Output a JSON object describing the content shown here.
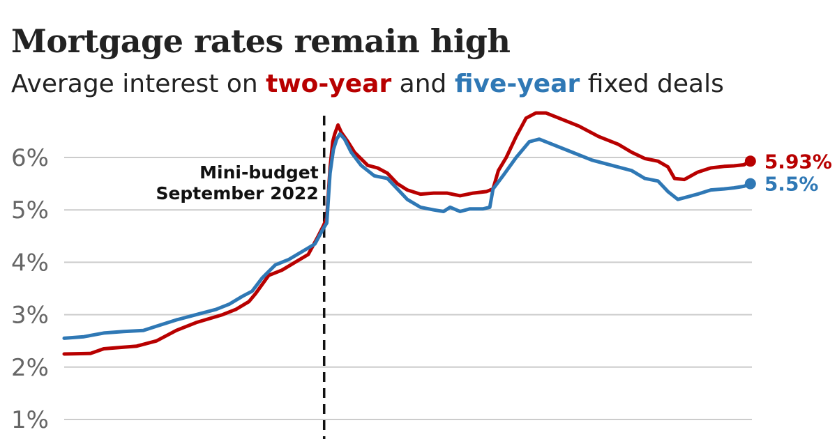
{
  "title": "Mortgage rates remain high",
  "subtitle": {
    "prefix": "Average interest on ",
    "two_year": "two-year",
    "mid": " and ",
    "five_year": "five-year",
    "suffix": " fixed deals"
  },
  "colors": {
    "two_year": "#b80000",
    "five_year": "#2f78b5",
    "grid": "#cccccc",
    "annotation": "#111111"
  },
  "chart_data": {
    "type": "line",
    "ylim": [
      0.6,
      6.8
    ],
    "yticks": [
      {
        "value": 1,
        "label": "1%"
      },
      {
        "value": 2,
        "label": "2%"
      },
      {
        "value": 3,
        "label": "3%"
      },
      {
        "value": 4,
        "label": "4%"
      },
      {
        "value": 5,
        "label": "5%"
      },
      {
        "value": 6,
        "label": "6%"
      }
    ],
    "grid": true,
    "annotation": {
      "x": 0.394,
      "lines": [
        "Mini-budget",
        "September 2022"
      ]
    },
    "series": [
      {
        "name": "two-year",
        "color_key": "two_year",
        "end_label": "5.93%",
        "points": [
          [
            0.0,
            2.25
          ],
          [
            0.04,
            2.26
          ],
          [
            0.06,
            2.35
          ],
          [
            0.09,
            2.38
          ],
          [
            0.11,
            2.4
          ],
          [
            0.14,
            2.5
          ],
          [
            0.17,
            2.7
          ],
          [
            0.2,
            2.85
          ],
          [
            0.24,
            3.0
          ],
          [
            0.26,
            3.1
          ],
          [
            0.28,
            3.25
          ],
          [
            0.29,
            3.4
          ],
          [
            0.31,
            3.75
          ],
          [
            0.33,
            3.85
          ],
          [
            0.35,
            4.0
          ],
          [
            0.37,
            4.15
          ],
          [
            0.385,
            4.5
          ],
          [
            0.393,
            4.7
          ],
          [
            0.398,
            4.85
          ],
          [
            0.403,
            5.8
          ],
          [
            0.407,
            6.3
          ],
          [
            0.41,
            6.45
          ],
          [
            0.415,
            6.62
          ],
          [
            0.42,
            6.48
          ],
          [
            0.43,
            6.3
          ],
          [
            0.44,
            6.1
          ],
          [
            0.46,
            5.85
          ],
          [
            0.475,
            5.8
          ],
          [
            0.49,
            5.7
          ],
          [
            0.505,
            5.5
          ],
          [
            0.52,
            5.38
          ],
          [
            0.54,
            5.3
          ],
          [
            0.56,
            5.32
          ],
          [
            0.58,
            5.32
          ],
          [
            0.6,
            5.27
          ],
          [
            0.62,
            5.32
          ],
          [
            0.64,
            5.35
          ],
          [
            0.65,
            5.4
          ],
          [
            0.658,
            5.75
          ],
          [
            0.67,
            6.0
          ],
          [
            0.685,
            6.4
          ],
          [
            0.7,
            6.75
          ],
          [
            0.715,
            6.85
          ],
          [
            0.73,
            6.85
          ],
          [
            0.75,
            6.75
          ],
          [
            0.78,
            6.6
          ],
          [
            0.81,
            6.4
          ],
          [
            0.84,
            6.25
          ],
          [
            0.86,
            6.1
          ],
          [
            0.88,
            5.98
          ],
          [
            0.9,
            5.93
          ],
          [
            0.915,
            5.82
          ],
          [
            0.925,
            5.6
          ],
          [
            0.94,
            5.58
          ],
          [
            0.96,
            5.72
          ],
          [
            0.98,
            5.8
          ],
          [
            1.0,
            5.83
          ],
          [
            1.015,
            5.84
          ],
          [
            1.03,
            5.86
          ],
          [
            1.04,
            5.93
          ]
        ]
      },
      {
        "name": "five-year",
        "color_key": "five_year",
        "end_label": "5.5%",
        "points": [
          [
            0.0,
            2.55
          ],
          [
            0.03,
            2.58
          ],
          [
            0.06,
            2.65
          ],
          [
            0.09,
            2.68
          ],
          [
            0.12,
            2.7
          ],
          [
            0.14,
            2.78
          ],
          [
            0.17,
            2.9
          ],
          [
            0.2,
            3.0
          ],
          [
            0.23,
            3.1
          ],
          [
            0.25,
            3.2
          ],
          [
            0.27,
            3.35
          ],
          [
            0.285,
            3.45
          ],
          [
            0.3,
            3.7
          ],
          [
            0.32,
            3.95
          ],
          [
            0.34,
            4.05
          ],
          [
            0.36,
            4.2
          ],
          [
            0.38,
            4.35
          ],
          [
            0.393,
            4.65
          ],
          [
            0.398,
            4.75
          ],
          [
            0.403,
            5.7
          ],
          [
            0.408,
            6.15
          ],
          [
            0.413,
            6.35
          ],
          [
            0.418,
            6.45
          ],
          [
            0.425,
            6.35
          ],
          [
            0.435,
            6.1
          ],
          [
            0.45,
            5.85
          ],
          [
            0.47,
            5.65
          ],
          [
            0.49,
            5.6
          ],
          [
            0.505,
            5.4
          ],
          [
            0.52,
            5.2
          ],
          [
            0.54,
            5.05
          ],
          [
            0.56,
            5.0
          ],
          [
            0.575,
            4.97
          ],
          [
            0.585,
            5.05
          ],
          [
            0.6,
            4.97
          ],
          [
            0.615,
            5.02
          ],
          [
            0.635,
            5.02
          ],
          [
            0.645,
            5.05
          ],
          [
            0.65,
            5.4
          ],
          [
            0.665,
            5.65
          ],
          [
            0.685,
            6.0
          ],
          [
            0.705,
            6.3
          ],
          [
            0.72,
            6.35
          ],
          [
            0.74,
            6.25
          ],
          [
            0.77,
            6.1
          ],
          [
            0.8,
            5.95
          ],
          [
            0.83,
            5.85
          ],
          [
            0.86,
            5.75
          ],
          [
            0.88,
            5.6
          ],
          [
            0.9,
            5.55
          ],
          [
            0.915,
            5.35
          ],
          [
            0.93,
            5.2
          ],
          [
            0.945,
            5.25
          ],
          [
            0.96,
            5.3
          ],
          [
            0.98,
            5.38
          ],
          [
            1.0,
            5.4
          ],
          [
            1.015,
            5.42
          ],
          [
            1.03,
            5.45
          ],
          [
            1.04,
            5.5
          ]
        ]
      }
    ]
  }
}
